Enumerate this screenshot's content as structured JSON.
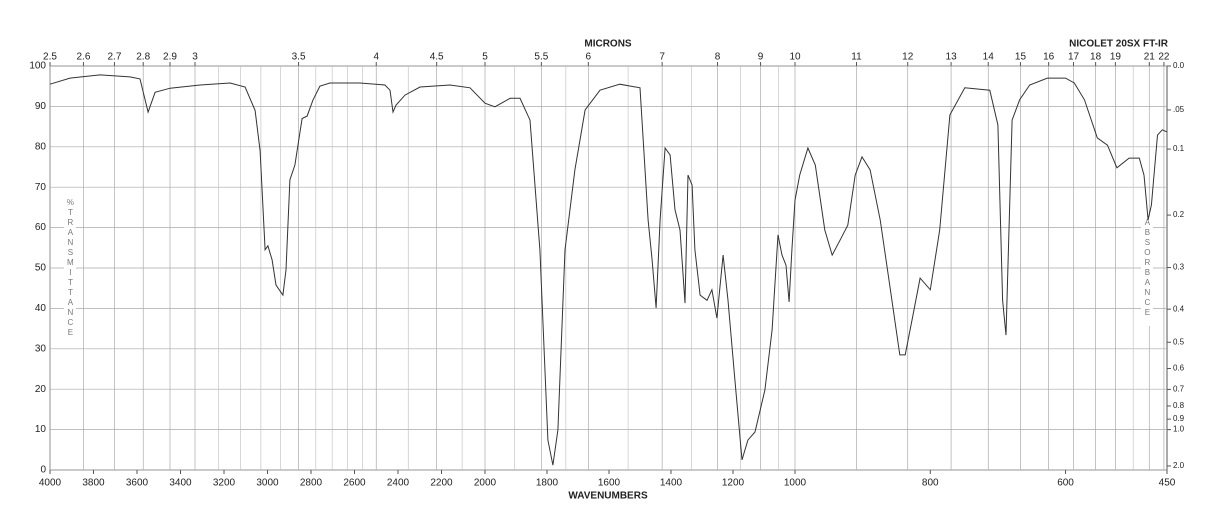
{
  "chart_data": {
    "type": "line",
    "title": "NICOLET 20SX FT-IR",
    "x_label": "WAVENUMBERS",
    "x2_label": "MICRONS",
    "y_label": "%TRANSMITTANCE",
    "y2_label": "ABSORBANCE",
    "color": "#333333",
    "grid": true,
    "x_scale_breaks": [
      4000,
      2000,
      1000,
      450
    ],
    "xlim": [
      4000,
      450
    ],
    "xticks": [
      4000,
      3800,
      3600,
      3400,
      3200,
      3000,
      2800,
      2600,
      2400,
      2200,
      2000,
      1800,
      1600,
      1400,
      1200,
      1000,
      800,
      600,
      450
    ],
    "x2ticks": [
      2.5,
      2.6,
      2.7,
      2.8,
      2.9,
      3,
      3.5,
      4,
      4.5,
      5,
      5.5,
      6,
      7,
      8,
      9,
      10,
      11,
      12,
      13,
      14,
      15,
      16,
      17,
      18,
      19,
      21,
      22
    ],
    "x2_minor_ticks": [
      3.1,
      3.2,
      3.3,
      3.4,
      3.6,
      3.7,
      3.8,
      3.9,
      4.25,
      4.75,
      5.25,
      5.75,
      6.5,
      7.5,
      8.5,
      9.5,
      20
    ],
    "ylim": [
      0,
      100
    ],
    "yticks": [
      0,
      10,
      20,
      30,
      40,
      50,
      60,
      70,
      80,
      90,
      100
    ],
    "y2lim": [
      2,
      0
    ],
    "y2ticks": [
      {
        "value": 0,
        "label": "0.0"
      },
      {
        "value": 0.05,
        "label": ".05"
      },
      {
        "value": 0.1,
        "label": "0.1"
      },
      0.2,
      0.3,
      0.4,
      0.5,
      0.6,
      0.7,
      0.8,
      0.9,
      {
        "value": 1,
        "label": "1.0"
      },
      {
        "value": 2,
        "label": "2.0"
      }
    ],
    "x": [
      4000,
      3908,
      3770,
      3632,
      3586,
      3549,
      3517,
      3448,
      3310,
      3172,
      3103,
      3057,
      3034,
      3011,
      2998,
      2979,
      2961,
      2929,
      2915,
      2897,
      2874,
      2841,
      2818,
      2791,
      2759,
      2713,
      2575,
      2460,
      2437,
      2423,
      2409,
      2368,
      2299,
      2161,
      2069,
      2000,
      1968,
      1919,
      1887,
      1855,
      1823,
      1797,
      1781,
      1765,
      1742,
      1710,
      1677,
      1629,
      1565,
      1500,
      1474,
      1461,
      1448,
      1435,
      1419,
      1403,
      1387,
      1371,
      1355,
      1345,
      1332,
      1323,
      1306,
      1284,
      1268,
      1252,
      1232,
      1216,
      1194,
      1171,
      1152,
      1129,
      1097,
      1074,
      1055,
      1042,
      1029,
      1019,
      1010,
      1000,
      993,
      981,
      970,
      956,
      945,
      933,
      922,
      911,
      901,
      889,
      874,
      859,
      845,
      837,
      827,
      815,
      800,
      786,
      771,
      749,
      712,
      700,
      693,
      688,
      679,
      668,
      653,
      627,
      600,
      587,
      572,
      553,
      538,
      524,
      506,
      491,
      484,
      478,
      473,
      464,
      457,
      450
    ],
    "values": [
      95.5,
      97,
      97.8,
      97.3,
      96.8,
      88.6,
      93.5,
      94.5,
      95.3,
      95.8,
      94.8,
      89,
      79,
      54.5,
      55.5,
      52,
      45.8,
      43.3,
      49.5,
      71.8,
      75.5,
      87,
      87.6,
      91.6,
      95,
      95.8,
      95.8,
      95.3,
      94,
      88.6,
      90.3,
      92.8,
      94.8,
      95.3,
      94.6,
      90.8,
      89.9,
      92,
      92,
      86.6,
      54.5,
      7.4,
      1.2,
      9.9,
      54.5,
      74.3,
      89.1,
      94,
      95.5,
      94.6,
      61.9,
      52,
      40.1,
      61.9,
      79.7,
      78,
      64.4,
      59.4,
      41.3,
      73,
      70.5,
      54.5,
      43.3,
      42,
      44.6,
      37.6,
      53.2,
      42,
      22.3,
      2.5,
      7.4,
      9.4,
      19.8,
      34.7,
      58.2,
      53.2,
      50.7,
      41.6,
      54.5,
      66.8,
      73,
      79.7,
      75.5,
      59.4,
      53.2,
      57,
      60.6,
      73,
      77.5,
      74.3,
      61.9,
      44.6,
      28.5,
      28.5,
      37.1,
      47.5,
      44.6,
      59.4,
      87.9,
      94.6,
      94,
      85.4,
      42,
      33.4,
      86.6,
      91.6,
      95.3,
      97,
      97,
      95.8,
      91.6,
      82.2,
      80.4,
      74.8,
      77.2,
      77.2,
      73,
      61.9,
      65.6,
      82.9,
      84.2,
      83.7
    ]
  }
}
